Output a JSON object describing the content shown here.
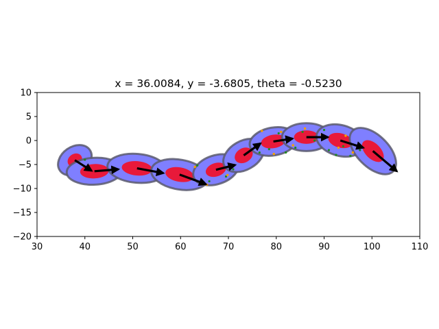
{
  "chart_data": {
    "type": "scatter",
    "title": "x = 36.0084, y = -3.6805, theta = -0.5230",
    "xlabel": "",
    "ylabel": "",
    "xlim": [
      30,
      110
    ],
    "ylim": [
      -20,
      10
    ],
    "xticks": [
      30,
      40,
      50,
      60,
      70,
      80,
      90,
      100,
      110
    ],
    "yticks": [
      10,
      5,
      0,
      -5,
      -10,
      -15,
      -20
    ],
    "xtick_labels": [
      "30",
      "40",
      "50",
      "60",
      "70",
      "80",
      "90",
      "100",
      "110"
    ],
    "ytick_labels": [
      "10",
      "5",
      "0",
      "−5",
      "−10",
      "−15",
      "−20"
    ],
    "grid": false,
    "colors": {
      "covariance_outer": "#7f7fff",
      "covariance_outer_edge": "#5a5a6e",
      "covariance_inner": "#e8193a",
      "heading_arrow": "#000000",
      "landmark_green": "#1f8a1f",
      "landmark_orange": "#f5a000"
    },
    "poses": [
      {
        "x": 37.9,
        "y": -4.1,
        "outer_rx": 3.8,
        "outer_ry": 2.8,
        "inner_rx": 1.6,
        "inner_ry": 1.3,
        "angle_deg": -35,
        "dx": 3.5,
        "dy": -2.2
      },
      {
        "x": 42.0,
        "y": -6.4,
        "outer_rx": 5.8,
        "outer_ry": 2.8,
        "inner_rx": 3.0,
        "inner_ry": 1.5,
        "angle_deg": -3,
        "dx": 5.0,
        "dy": 0.4
      },
      {
        "x": 50.9,
        "y": -5.8,
        "outer_rx": 6.2,
        "outer_ry": 3.0,
        "inner_rx": 3.2,
        "inner_ry": 1.5,
        "angle_deg": 5,
        "dx": 5.5,
        "dy": -1.0
      },
      {
        "x": 59.8,
        "y": -7.1,
        "outer_rx": 6.0,
        "outer_ry": 3.1,
        "inner_rx": 3.0,
        "inner_ry": 1.5,
        "angle_deg": 10,
        "dx": 5.5,
        "dy": -2.0
      },
      {
        "x": 67.4,
        "y": -6.1,
        "outer_rx": 4.9,
        "outer_ry": 3.0,
        "inner_rx": 2.2,
        "inner_ry": 1.4,
        "angle_deg": -18,
        "dx": 4.0,
        "dy": 1.0
      },
      {
        "x": 73.2,
        "y": -3.1,
        "outer_rx": 4.6,
        "outer_ry": 3.0,
        "inner_rx": 2.0,
        "inner_ry": 1.5,
        "angle_deg": -30,
        "dx": 3.5,
        "dy": 2.5
      },
      {
        "x": 79.4,
        "y": -0.2,
        "outer_rx": 5.0,
        "outer_ry": 2.9,
        "inner_rx": 2.6,
        "inner_ry": 1.4,
        "angle_deg": -10,
        "dx": 4.0,
        "dy": 0.6
      },
      {
        "x": 86.3,
        "y": 0.7,
        "outer_rx": 5.1,
        "outer_ry": 2.9,
        "inner_rx": 2.6,
        "inner_ry": 1.4,
        "angle_deg": 0,
        "dx": 4.5,
        "dy": 0.0
      },
      {
        "x": 93.4,
        "y": 0.0,
        "outer_rx": 5.1,
        "outer_ry": 3.2,
        "inner_rx": 2.6,
        "inner_ry": 1.5,
        "angle_deg": 15,
        "dx": 4.8,
        "dy": -1.5
      },
      {
        "x": 100.2,
        "y": -2.2,
        "outer_rx": 6.0,
        "outer_ry": 3.3,
        "inner_rx": 2.8,
        "inner_ry": 1.6,
        "angle_deg": 45,
        "dx": 5.0,
        "dy": -4.2
      }
    ],
    "landmarks_green": [
      [
        40.0,
        -4.0
      ],
      [
        63.5,
        -5.2
      ],
      [
        66.0,
        -8.5
      ],
      [
        69.5,
        -7.5
      ],
      [
        71.0,
        -6.0
      ],
      [
        76.5,
        -2.5
      ],
      [
        78.5,
        -1.8
      ],
      [
        80.5,
        1.5
      ],
      [
        82.0,
        -2.5
      ],
      [
        84.0,
        -1.5
      ],
      [
        85.5,
        1.8
      ],
      [
        88.0,
        0.0
      ],
      [
        90.0,
        2.2
      ],
      [
        91.0,
        -2.0
      ],
      [
        92.5,
        -3.0
      ],
      [
        94.0,
        -1.2
      ],
      [
        95.5,
        -3.2
      ],
      [
        96.5,
        -1.0
      ],
      [
        97.5,
        -2.0
      ]
    ],
    "landmarks_orange": [
      [
        63.0,
        -5.5
      ],
      [
        65.5,
        -9.2
      ],
      [
        69.8,
        -7.2
      ],
      [
        77.0,
        2.0
      ],
      [
        79.5,
        -2.8
      ],
      [
        81.0,
        1.8
      ],
      [
        83.5,
        -1.0
      ],
      [
        86.0,
        2.5
      ],
      [
        89.5,
        1.2
      ],
      [
        93.0,
        -1.5
      ],
      [
        94.5,
        1.0
      ],
      [
        96.0,
        -2.5
      ]
    ]
  }
}
